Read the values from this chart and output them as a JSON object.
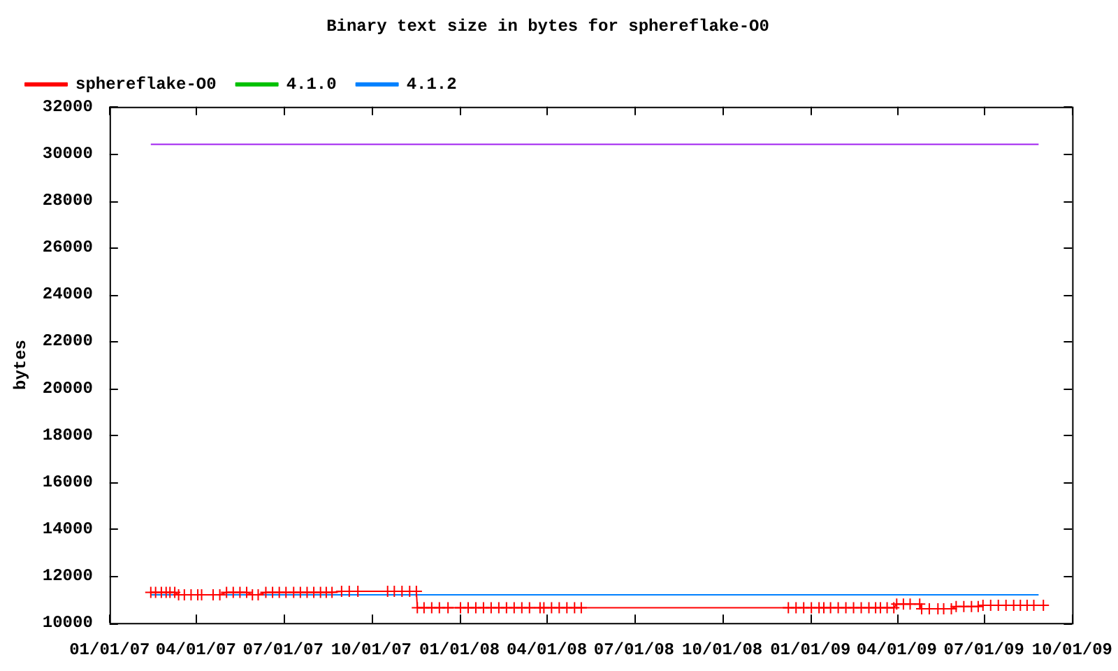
{
  "chart_data": {
    "type": "line",
    "title": "Binary text size in bytes for sphereflake-O0",
    "ylabel": "bytes",
    "xlim": [
      "2007-01-01",
      "2009-10-01"
    ],
    "xticks": [
      {
        "value": "2007-01-01",
        "label": "01/01/07"
      },
      {
        "value": "2007-04-01",
        "label": "04/01/07"
      },
      {
        "value": "2007-07-01",
        "label": "07/01/07"
      },
      {
        "value": "2007-10-01",
        "label": "10/01/07"
      },
      {
        "value": "2008-01-01",
        "label": "01/01/08"
      },
      {
        "value": "2008-04-01",
        "label": "04/01/08"
      },
      {
        "value": "2008-07-01",
        "label": "07/01/08"
      },
      {
        "value": "2008-10-01",
        "label": "10/01/08"
      },
      {
        "value": "2009-01-01",
        "label": "01/01/09"
      },
      {
        "value": "2009-04-01",
        "label": "04/01/09"
      },
      {
        "value": "2009-07-01",
        "label": "07/01/09"
      },
      {
        "value": "2009-10-01",
        "label": "10/01/09"
      }
    ],
    "ylim": [
      10000,
      32000
    ],
    "yticks": [
      10000,
      12000,
      14000,
      16000,
      18000,
      20000,
      22000,
      24000,
      26000,
      28000,
      30000,
      32000
    ],
    "legend": "top left",
    "series": [
      {
        "name": "sphereflake-O0",
        "color": "#ff0000",
        "marker": "cross",
        "x": [
          "2007-02-13",
          "2007-02-18",
          "2007-02-24",
          "2007-03-01",
          "2007-03-05",
          "2007-03-10",
          "2007-03-14",
          "2007-03-20",
          "2007-03-27",
          "2007-04-03",
          "2007-04-07",
          "2007-04-19",
          "2007-04-26",
          "2007-05-03",
          "2007-05-10",
          "2007-05-17",
          "2007-05-24",
          "2007-05-30",
          "2007-06-05",
          "2007-06-13",
          "2007-06-20",
          "2007-06-27",
          "2007-07-04",
          "2007-07-12",
          "2007-07-19",
          "2007-07-26",
          "2007-08-02",
          "2007-08-09",
          "2007-08-15",
          "2007-08-21",
          "2007-08-31",
          "2007-09-08",
          "2007-09-17",
          "2007-10-18",
          "2007-10-25",
          "2007-11-02",
          "2007-11-10",
          "2007-11-17",
          "2007-11-18",
          "2007-11-25",
          "2007-12-03",
          "2007-12-11",
          "2007-12-20",
          "2008-01-02",
          "2008-01-10",
          "2008-01-18",
          "2008-01-26",
          "2008-02-03",
          "2008-02-11",
          "2008-02-19",
          "2008-02-27",
          "2008-03-06",
          "2008-03-14",
          "2008-03-25",
          "2008-03-29",
          "2008-04-06",
          "2008-04-14",
          "2008-04-22",
          "2008-04-30",
          "2008-05-07",
          "2008-12-09",
          "2008-12-17",
          "2008-12-25",
          "2009-01-02",
          "2009-01-10",
          "2009-01-15",
          "2009-01-22",
          "2009-01-30",
          "2009-02-07",
          "2009-02-15",
          "2009-02-23",
          "2009-03-03",
          "2009-03-10",
          "2009-03-15",
          "2009-03-22",
          "2009-03-29",
          "2009-04-01",
          "2009-04-08",
          "2009-04-15",
          "2009-04-25",
          "2009-04-27",
          "2009-05-05",
          "2009-05-14",
          "2009-05-20",
          "2009-05-28",
          "2009-06-02",
          "2009-06-10",
          "2009-06-18",
          "2009-06-25",
          "2009-06-30",
          "2009-07-08",
          "2009-07-16",
          "2009-07-24",
          "2009-08-01",
          "2009-08-08",
          "2009-08-15",
          "2009-08-22",
          "2009-09-01"
        ],
        "values": [
          11300,
          11300,
          11300,
          11300,
          11300,
          11300,
          11200,
          11200,
          11200,
          11200,
          11200,
          11200,
          11200,
          11300,
          11300,
          11300,
          11300,
          11200,
          11200,
          11300,
          11300,
          11300,
          11300,
          11300,
          11300,
          11300,
          11300,
          11300,
          11300,
          11300,
          11350,
          11350,
          11350,
          11350,
          11350,
          11350,
          11350,
          11350,
          10650,
          10650,
          10650,
          10650,
          10650,
          10650,
          10650,
          10650,
          10650,
          10650,
          10650,
          10650,
          10650,
          10650,
          10650,
          10650,
          10650,
          10650,
          10650,
          10650,
          10650,
          10650,
          10650,
          10650,
          10650,
          10650,
          10650,
          10650,
          10650,
          10650,
          10650,
          10650,
          10650,
          10650,
          10650,
          10650,
          10650,
          10650,
          10800,
          10800,
          10800,
          10800,
          10600,
          10600,
          10600,
          10600,
          10600,
          10700,
          10700,
          10700,
          10700,
          10750,
          10750,
          10750,
          10750,
          10750,
          10750,
          10750,
          10750,
          10750
        ]
      },
      {
        "name": "4.1.0",
        "color": "#00c000",
        "marker": "none"
      },
      {
        "name": "4.1.2",
        "color": "#0080ff",
        "marker": "none",
        "x": [
          "2007-02-13",
          "2009-08-27"
        ],
        "values": [
          11200,
          11200
        ]
      },
      {
        "color": "#a020f0",
        "marker": "none",
        "x": [
          "2007-02-13",
          "2009-08-27"
        ],
        "values": [
          30400,
          30400
        ]
      }
    ]
  }
}
